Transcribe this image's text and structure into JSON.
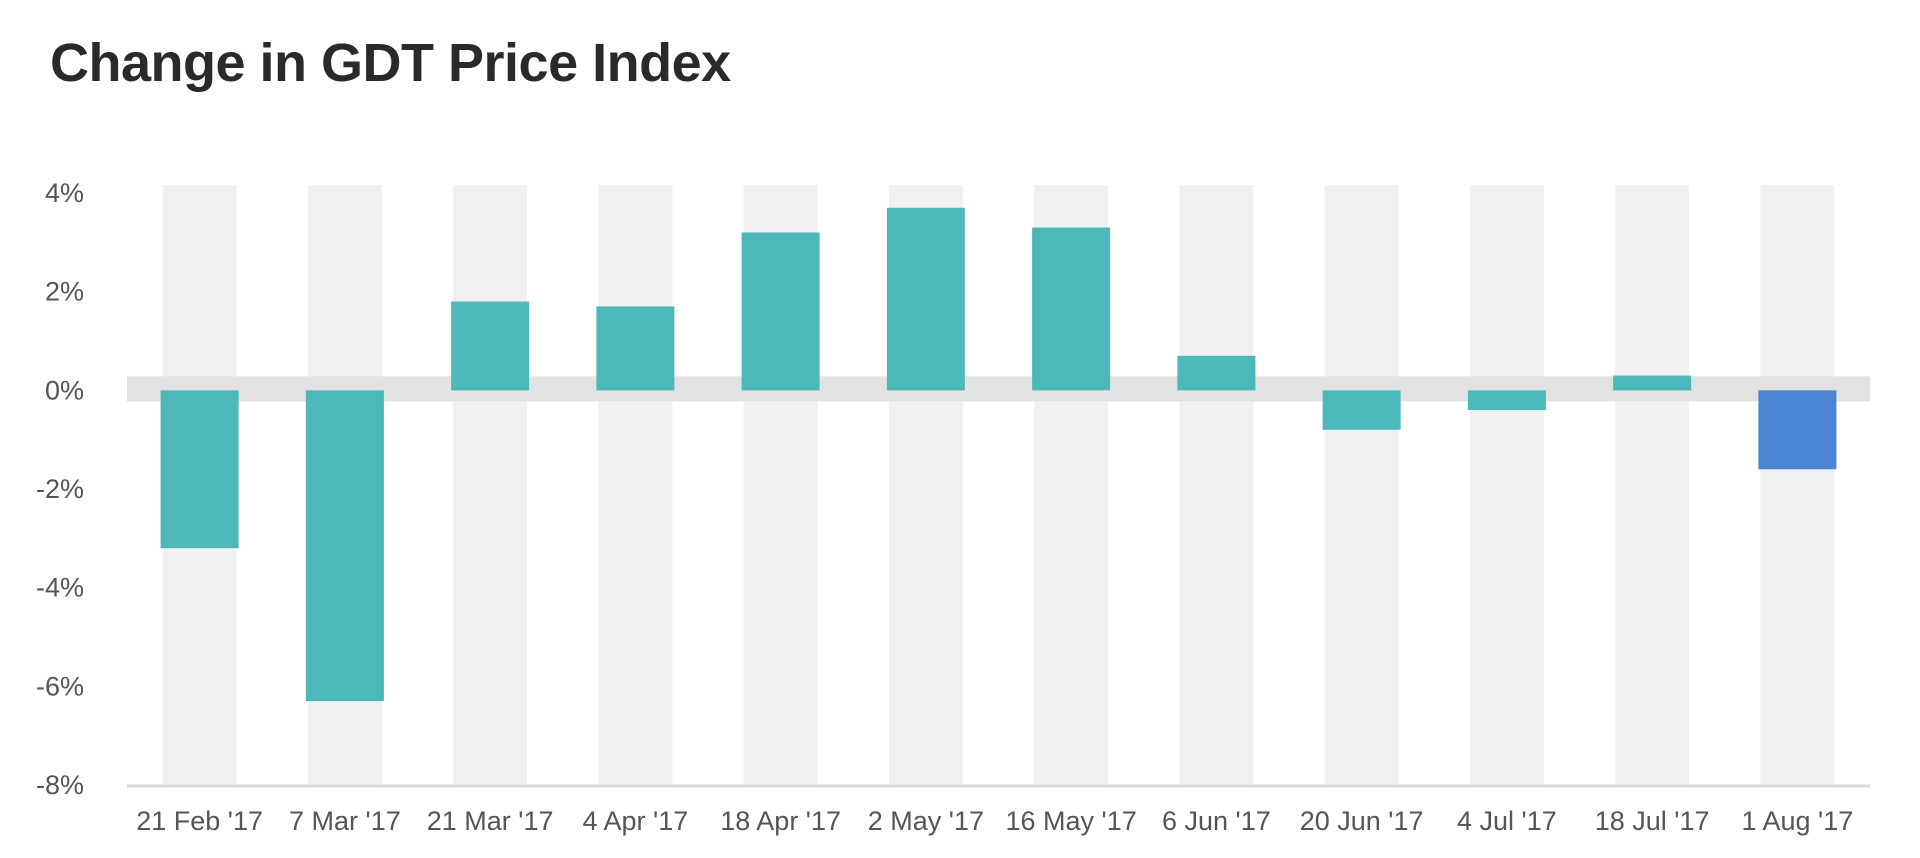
{
  "chart_data": {
    "type": "bar",
    "title": "Change in GDT Price Index",
    "xlabel": "",
    "ylabel": "",
    "categories": [
      "21 Feb '17",
      "7 Mar '17",
      "21 Mar '17",
      "4 Apr '17",
      "18 Apr '17",
      "2 May '17",
      "16 May '17",
      "6 Jun '17",
      "20 Jun '17",
      "4 Jul '17",
      "18 Jul '17",
      "1 Aug '17"
    ],
    "values": [
      -3.2,
      -6.3,
      1.8,
      1.7,
      3.2,
      3.7,
      3.3,
      0.7,
      -0.8,
      -0.4,
      0.3,
      -1.6
    ],
    "highlight_index": 11,
    "ylim": [
      -8,
      4
    ],
    "yticks": [
      4,
      2,
      0,
      -2,
      -4,
      -6,
      -8
    ],
    "ytick_labels": [
      "4%",
      "2%",
      "0%",
      "-2%",
      "-4%",
      "-6%",
      "-8%"
    ],
    "grid": false,
    "legend": "none",
    "colors": {
      "bar": "#4db8b9",
      "highlight": "#4a86d4",
      "band": "#f1f1f1",
      "zero_band": "#e2e2e2",
      "axis_line": "#dadada"
    }
  }
}
